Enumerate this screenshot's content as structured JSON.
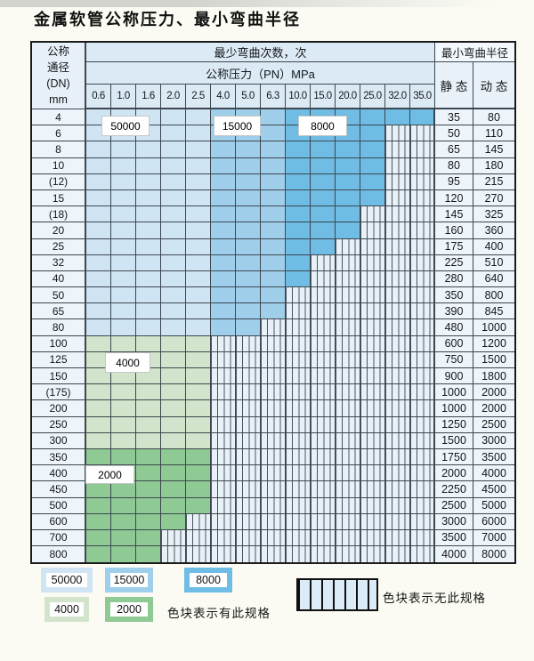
{
  "title": "金属软管公称压力、最小弯曲半径",
  "palette": {
    "b1": "#cfe5f4",
    "b2": "#a0cfec",
    "b3": "#6fbce4",
    "g1": "#d2e5cc",
    "g2": "#8fca94"
  },
  "table": {
    "dn_header_lines": [
      "公称",
      "通径",
      "(DN)",
      "mm"
    ],
    "bend_times_header": "最少弯曲次数，次",
    "pressure_header": "公称压力（PN）MPa",
    "radius_header": "最小弯曲半径",
    "static_header": "静 态",
    "dynamic_header": "动 态",
    "pressures": [
      "0.6",
      "1.0",
      "1.6",
      "2.0",
      "2.5",
      "4.0",
      "5.0",
      "6.3",
      "10.0",
      "15.0",
      "20.0",
      "25.0",
      "32.0",
      "35.0"
    ],
    "cell_legend": "b1=50000次 b2=15000次 b3=8000次 g1=4000次 g2=2000次 x=无此规格",
    "rows": [
      {
        "dn": "4",
        "cells": [
          "b1",
          "b1",
          "b1",
          "b1",
          "b1",
          "b2",
          "b2",
          "b2",
          "b3",
          "b3",
          "b3",
          "b3",
          "b3",
          "b3"
        ],
        "static": "35",
        "dynamic": "80"
      },
      {
        "dn": "6",
        "cells": [
          "b1",
          "b1",
          "b1",
          "b1",
          "b1",
          "b2",
          "b2",
          "b2",
          "b3",
          "b3",
          "b3",
          "b3",
          "x",
          "x"
        ],
        "static": "50",
        "dynamic": "110"
      },
      {
        "dn": "8",
        "cells": [
          "b1",
          "b1",
          "b1",
          "b1",
          "b1",
          "b2",
          "b2",
          "b2",
          "b3",
          "b3",
          "b3",
          "b3",
          "x",
          "x"
        ],
        "static": "65",
        "dynamic": "145"
      },
      {
        "dn": "10",
        "cells": [
          "b1",
          "b1",
          "b1",
          "b1",
          "b1",
          "b2",
          "b2",
          "b2",
          "b3",
          "b3",
          "b3",
          "b3",
          "x",
          "x"
        ],
        "static": "80",
        "dynamic": "180"
      },
      {
        "dn": "(12)",
        "cells": [
          "b1",
          "b1",
          "b1",
          "b1",
          "b1",
          "b2",
          "b2",
          "b2",
          "b3",
          "b3",
          "b3",
          "b3",
          "x",
          "x"
        ],
        "static": "95",
        "dynamic": "215"
      },
      {
        "dn": "15",
        "cells": [
          "b1",
          "b1",
          "b1",
          "b1",
          "b1",
          "b2",
          "b2",
          "b2",
          "b3",
          "b3",
          "b3",
          "b3",
          "x",
          "x"
        ],
        "static": "120",
        "dynamic": "270"
      },
      {
        "dn": "(18)",
        "cells": [
          "b1",
          "b1",
          "b1",
          "b1",
          "b1",
          "b2",
          "b2",
          "b2",
          "b3",
          "b3",
          "b3",
          "x",
          "x",
          "x"
        ],
        "static": "145",
        "dynamic": "325"
      },
      {
        "dn": "20",
        "cells": [
          "b1",
          "b1",
          "b1",
          "b1",
          "b1",
          "b2",
          "b2",
          "b2",
          "b3",
          "b3",
          "b3",
          "x",
          "x",
          "x"
        ],
        "static": "160",
        "dynamic": "360"
      },
      {
        "dn": "25",
        "cells": [
          "b1",
          "b1",
          "b1",
          "b1",
          "b1",
          "b2",
          "b2",
          "b2",
          "b3",
          "b3",
          "x",
          "x",
          "x",
          "x"
        ],
        "static": "175",
        "dynamic": "400"
      },
      {
        "dn": "32",
        "cells": [
          "b1",
          "b1",
          "b1",
          "b1",
          "b1",
          "b2",
          "b2",
          "b2",
          "b3",
          "x",
          "x",
          "x",
          "x",
          "x"
        ],
        "static": "225",
        "dynamic": "510"
      },
      {
        "dn": "40",
        "cells": [
          "b1",
          "b1",
          "b1",
          "b1",
          "b1",
          "b2",
          "b2",
          "b2",
          "b3",
          "x",
          "x",
          "x",
          "x",
          "x"
        ],
        "static": "280",
        "dynamic": "640"
      },
      {
        "dn": "50",
        "cells": [
          "b1",
          "b1",
          "b1",
          "b1",
          "b1",
          "b2",
          "b2",
          "b2",
          "x",
          "x",
          "x",
          "x",
          "x",
          "x"
        ],
        "static": "350",
        "dynamic": "800"
      },
      {
        "dn": "65",
        "cells": [
          "b1",
          "b1",
          "b1",
          "b1",
          "b1",
          "b2",
          "b2",
          "b2",
          "x",
          "x",
          "x",
          "x",
          "x",
          "x"
        ],
        "static": "390",
        "dynamic": "845"
      },
      {
        "dn": "80",
        "cells": [
          "b1",
          "b1",
          "b1",
          "b1",
          "b1",
          "b2",
          "b2",
          "x",
          "x",
          "x",
          "x",
          "x",
          "x",
          "x"
        ],
        "static": "480",
        "dynamic": "1000"
      },
      {
        "dn": "100",
        "cells": [
          "g1",
          "g1",
          "g1",
          "g1",
          "g1",
          "x",
          "x",
          "x",
          "x",
          "x",
          "x",
          "x",
          "x",
          "x"
        ],
        "static": "600",
        "dynamic": "1200"
      },
      {
        "dn": "125",
        "cells": [
          "g1",
          "g1",
          "g1",
          "g1",
          "g1",
          "x",
          "x",
          "x",
          "x",
          "x",
          "x",
          "x",
          "x",
          "x"
        ],
        "static": "750",
        "dynamic": "1500"
      },
      {
        "dn": "150",
        "cells": [
          "g1",
          "g1",
          "g1",
          "g1",
          "g1",
          "x",
          "x",
          "x",
          "x",
          "x",
          "x",
          "x",
          "x",
          "x"
        ],
        "static": "900",
        "dynamic": "1800"
      },
      {
        "dn": "(175)",
        "cells": [
          "g1",
          "g1",
          "g1",
          "g1",
          "g1",
          "x",
          "x",
          "x",
          "x",
          "x",
          "x",
          "x",
          "x",
          "x"
        ],
        "static": "1000",
        "dynamic": "2000"
      },
      {
        "dn": "200",
        "cells": [
          "g1",
          "g1",
          "g1",
          "g1",
          "g1",
          "x",
          "x",
          "x",
          "x",
          "x",
          "x",
          "x",
          "x",
          "x"
        ],
        "static": "1000",
        "dynamic": "2000"
      },
      {
        "dn": "250",
        "cells": [
          "g1",
          "g1",
          "g1",
          "g1",
          "g1",
          "x",
          "x",
          "x",
          "x",
          "x",
          "x",
          "x",
          "x",
          "x"
        ],
        "static": "1250",
        "dynamic": "2500"
      },
      {
        "dn": "300",
        "cells": [
          "g1",
          "g1",
          "g1",
          "g1",
          "g1",
          "x",
          "x",
          "x",
          "x",
          "x",
          "x",
          "x",
          "x",
          "x"
        ],
        "static": "1500",
        "dynamic": "3000"
      },
      {
        "dn": "350",
        "cells": [
          "g2",
          "g2",
          "g2",
          "g2",
          "g2",
          "x",
          "x",
          "x",
          "x",
          "x",
          "x",
          "x",
          "x",
          "x"
        ],
        "static": "1750",
        "dynamic": "3500"
      },
      {
        "dn": "400",
        "cells": [
          "g2",
          "g2",
          "g2",
          "g2",
          "g2",
          "x",
          "x",
          "x",
          "x",
          "x",
          "x",
          "x",
          "x",
          "x"
        ],
        "static": "2000",
        "dynamic": "4000"
      },
      {
        "dn": "450",
        "cells": [
          "g2",
          "g2",
          "g2",
          "g2",
          "g2",
          "x",
          "x",
          "x",
          "x",
          "x",
          "x",
          "x",
          "x",
          "x"
        ],
        "static": "2250",
        "dynamic": "4500"
      },
      {
        "dn": "500",
        "cells": [
          "g2",
          "g2",
          "g2",
          "g2",
          "g2",
          "x",
          "x",
          "x",
          "x",
          "x",
          "x",
          "x",
          "x",
          "x"
        ],
        "static": "2500",
        "dynamic": "5000"
      },
      {
        "dn": "600",
        "cells": [
          "g2",
          "g2",
          "g2",
          "g2",
          "x",
          "x",
          "x",
          "x",
          "x",
          "x",
          "x",
          "x",
          "x",
          "x"
        ],
        "static": "3000",
        "dynamic": "6000"
      },
      {
        "dn": "700",
        "cells": [
          "g2",
          "g2",
          "g2",
          "x",
          "x",
          "x",
          "x",
          "x",
          "x",
          "x",
          "x",
          "x",
          "x",
          "x"
        ],
        "static": "3500",
        "dynamic": "7000"
      },
      {
        "dn": "800",
        "cells": [
          "g2",
          "g2",
          "g2",
          "x",
          "x",
          "x",
          "x",
          "x",
          "x",
          "x",
          "x",
          "x",
          "x",
          "x"
        ],
        "static": "4000",
        "dynamic": "8000"
      }
    ]
  },
  "region_labels": [
    {
      "text": "50000"
    },
    {
      "text": "15000"
    },
    {
      "text": "8000"
    },
    {
      "text": "4000"
    },
    {
      "text": "2000"
    }
  ],
  "legend": {
    "items": [
      {
        "label": "50000",
        "color_key": "b1"
      },
      {
        "label": "15000",
        "color_key": "b2"
      },
      {
        "label": "8000",
        "color_key": "b3"
      },
      {
        "label": "4000",
        "color_key": "g1"
      },
      {
        "label": "2000",
        "color_key": "g2"
      }
    ],
    "available_note": "色块表示有此规格",
    "unavailable_note": "色块表示无此规格"
  }
}
